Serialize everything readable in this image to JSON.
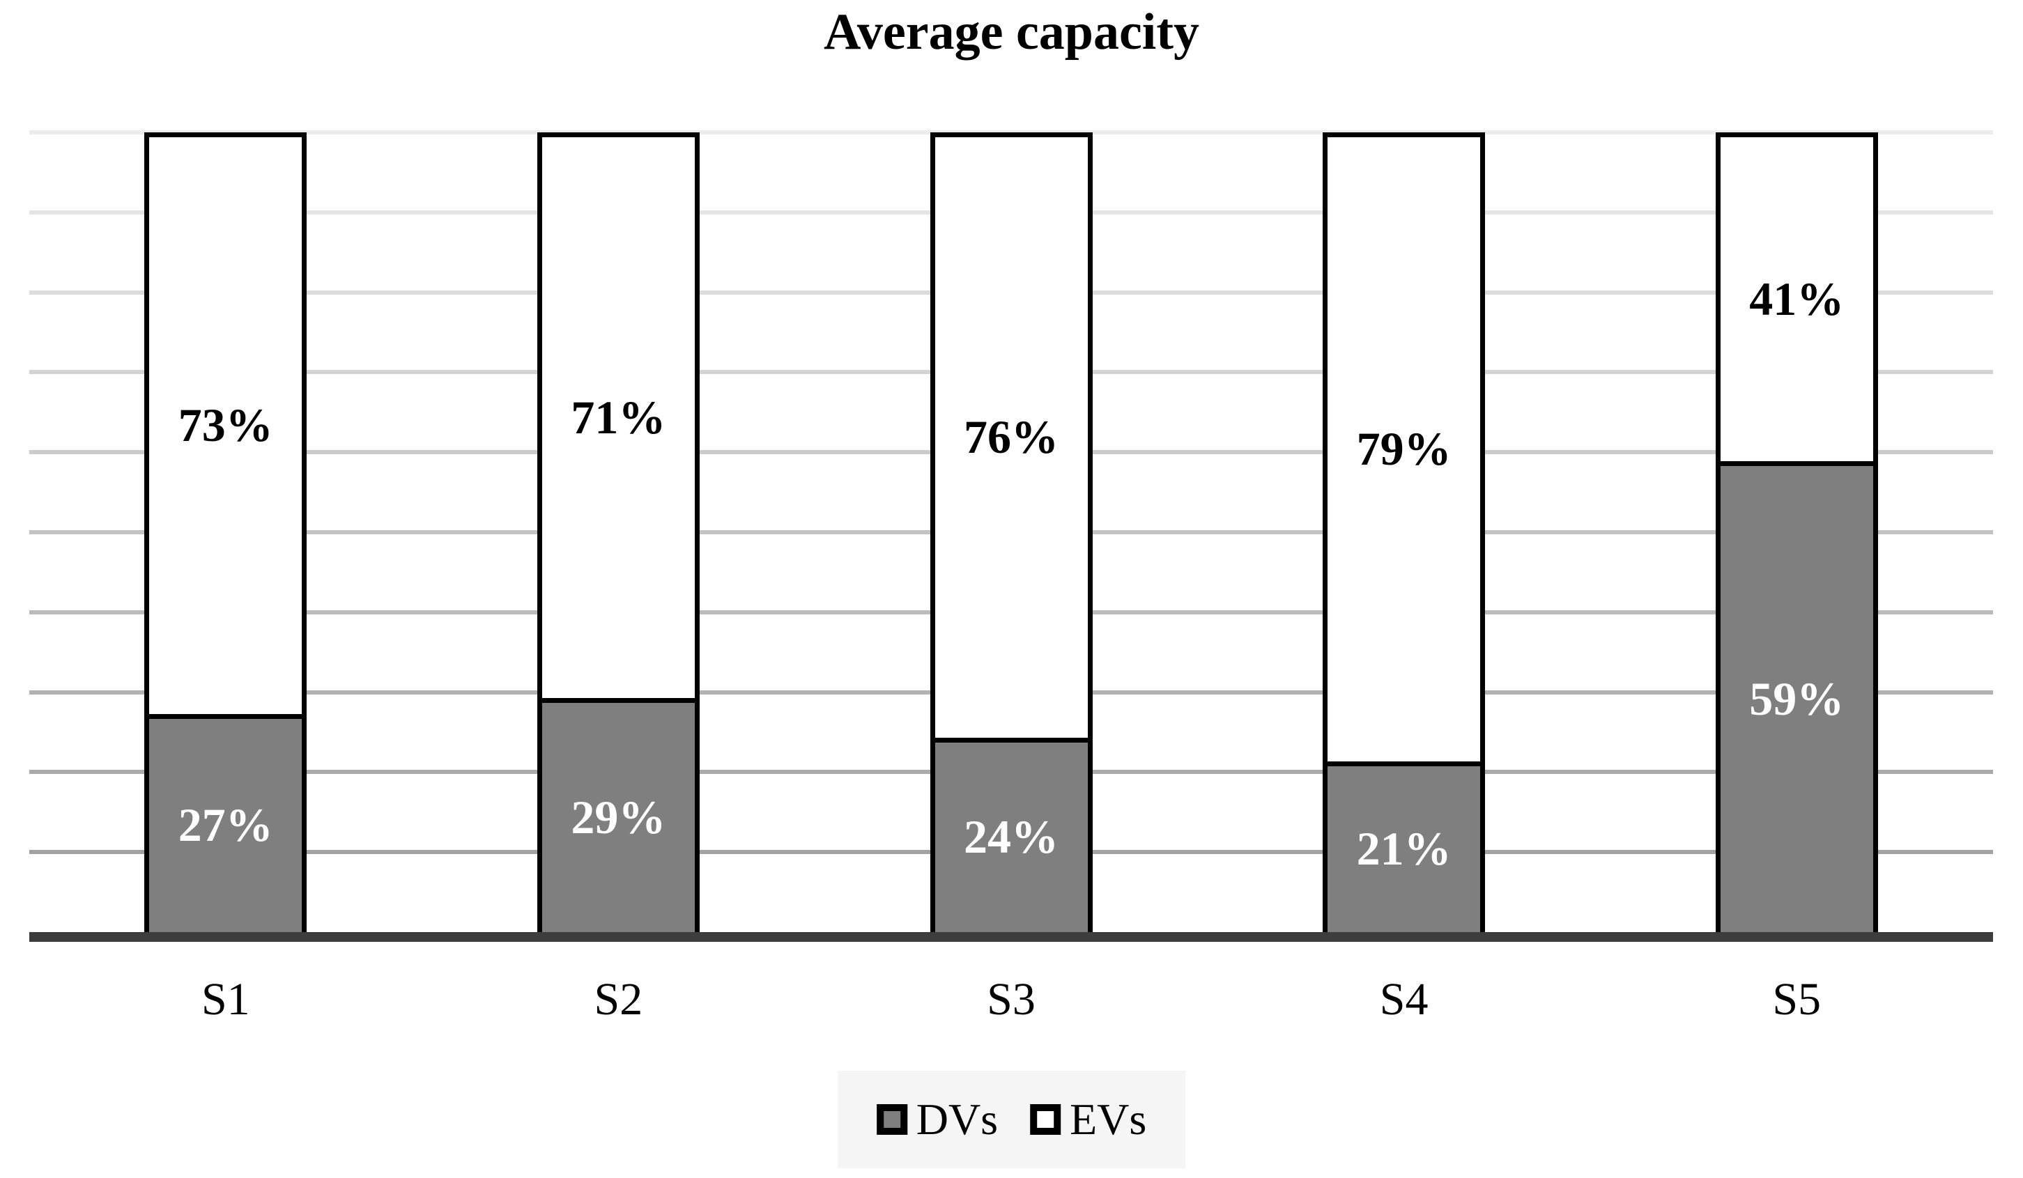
{
  "title": "Average capacity",
  "chart_data": {
    "type": "bar",
    "stacked": true,
    "title": "Average capacity",
    "categories": [
      "S1",
      "S2",
      "S3",
      "S4",
      "S5"
    ],
    "series": [
      {
        "name": "DVs",
        "values": [
          27,
          29,
          24,
          21,
          59
        ],
        "fill": "#7f7f7f",
        "label_color": "#ffffff"
      },
      {
        "name": "EVs",
        "values": [
          73,
          71,
          76,
          79,
          41
        ],
        "fill": "#ffffff",
        "label_color": "#000000"
      }
    ],
    "data_labels": {
      "DVs": [
        "27%",
        "29%",
        "24%",
        "21%",
        "59%"
      ],
      "EVs": [
        "73%",
        "71%",
        "76%",
        "79%",
        "41%"
      ]
    },
    "xlabel": "",
    "ylabel": "",
    "ylim": [
      0,
      100
    ],
    "grid": true,
    "gridline_step_percent": 10,
    "legend_position": "bottom"
  },
  "legend": {
    "items": [
      {
        "label": "DVs",
        "fill": "#7f7f7f"
      },
      {
        "label": "EVs",
        "fill": "#ffffff"
      }
    ]
  },
  "colors": {
    "background": "#ffffff",
    "bar_border": "#000000",
    "axis_line": "#3d3d3d",
    "grid_top": "#ececec",
    "grid_bottom": "#a2a2a2",
    "legend_background": "#f5f5f5",
    "title_text": "#000000"
  }
}
